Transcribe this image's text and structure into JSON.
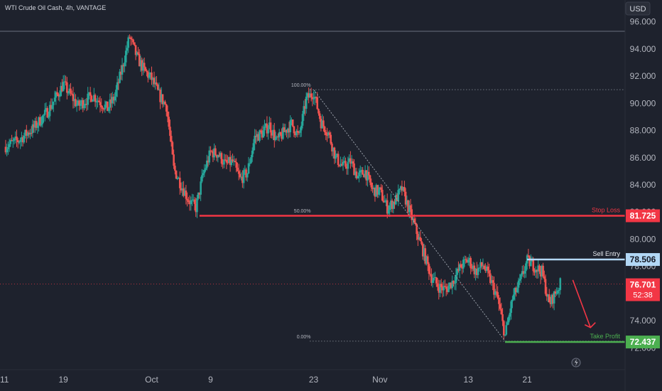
{
  "header": {
    "symbol_title": "WTI Crude Oil Cash, 4h, VANTAGE",
    "currency_button": "USD"
  },
  "price_axis": {
    "ticks": [
      "96.000",
      "94.000",
      "92.000",
      "90.000",
      "88.000",
      "86.000",
      "84.000",
      "82.000",
      "80.000",
      "78.000",
      "76.000",
      "74.000",
      "72.000"
    ]
  },
  "time_axis": {
    "ticks": [
      {
        "label": "11",
        "day": 0
      },
      {
        "label": "19",
        "day": 8
      },
      {
        "label": "Oct",
        "day": 20
      },
      {
        "label": "9",
        "day": 28
      },
      {
        "label": "23",
        "day": 42
      },
      {
        "label": "Nov",
        "day": 51
      },
      {
        "label": "13",
        "day": 63
      },
      {
        "label": "21",
        "day": 71
      }
    ]
  },
  "fib": {
    "level_100": "100.00%",
    "level_50": "50.00%",
    "level_0": "0.00%"
  },
  "annotations": {
    "stop_loss_label": "Stop Loss",
    "stop_loss_value": "81.725",
    "sell_entry_label": "Sell Entry",
    "sell_entry_value": "78.506",
    "take_profit_label": "Take Profit",
    "take_profit_value": "72.437",
    "current_price": "76.701",
    "countdown": "52:38"
  },
  "colors": {
    "background": "#1e222d",
    "up": "#26a69a",
    "down": "#ef5350",
    "stop_loss": "#f23645",
    "sell_entry": "#b2d7f5",
    "take_profit": "#4caf50",
    "current": "#f23645",
    "text": "#b2b5be"
  },
  "chart_data": {
    "type": "candlestick",
    "title": "WTI Crude Oil Cash, 4h, VANTAGE",
    "ylim": [
      70.4,
      97.6
    ],
    "xlim_days": [
      -0.6,
      84.3
    ],
    "y_unit": "USD",
    "x_unit": "days (Sep 11 = 0)",
    "anchors": [
      [
        0,
        86.8
      ],
      [
        2,
        87.3
      ],
      [
        4,
        88.2
      ],
      [
        6,
        89.5
      ],
      [
        8,
        91.4
      ],
      [
        10,
        89.8
      ],
      [
        12,
        90.6
      ],
      [
        14,
        89.6
      ],
      [
        15,
        90.5
      ],
      [
        16,
        92.6
      ],
      [
        17,
        94.9
      ],
      [
        18,
        93.4
      ],
      [
        19,
        92.4
      ],
      [
        20,
        91.8
      ],
      [
        21,
        90.6
      ],
      [
        22,
        89.8
      ],
      [
        23,
        85.2
      ],
      [
        24,
        84.0
      ],
      [
        25,
        82.9
      ],
      [
        26,
        82.3
      ],
      [
        27,
        84.8
      ],
      [
        28,
        86.4
      ],
      [
        29,
        86.3
      ],
      [
        30,
        85.5
      ],
      [
        31,
        85.7
      ],
      [
        32,
        84.4
      ],
      [
        33,
        84.9
      ],
      [
        34,
        87.5
      ],
      [
        35,
        87.8
      ],
      [
        36,
        88.4
      ],
      [
        37,
        87.2
      ],
      [
        38,
        87.9
      ],
      [
        39,
        88.5
      ],
      [
        40,
        87.5
      ],
      [
        41,
        90.3
      ],
      [
        42,
        90.8
      ],
      [
        43,
        88.6
      ],
      [
        44,
        87.8
      ],
      [
        45,
        86.0
      ],
      [
        46,
        85.3
      ],
      [
        47,
        85.7
      ],
      [
        48,
        84.6
      ],
      [
        49,
        85.0
      ],
      [
        50,
        83.6
      ],
      [
        51,
        83.5
      ],
      [
        52,
        82.3
      ],
      [
        53,
        82.8
      ],
      [
        54,
        83.7
      ],
      [
        55,
        82.1
      ],
      [
        56,
        80.5
      ],
      [
        57,
        78.9
      ],
      [
        58,
        77.2
      ],
      [
        59,
        76.5
      ],
      [
        60,
        76.3
      ],
      [
        61,
        77.0
      ],
      [
        62,
        78.0
      ],
      [
        63,
        78.5
      ],
      [
        64,
        77.6
      ],
      [
        65,
        78.1
      ],
      [
        66,
        77.0
      ],
      [
        67,
        75.6
      ],
      [
        68,
        72.9
      ],
      [
        69,
        75.6
      ],
      [
        70,
        76.8
      ],
      [
        71,
        78.4
      ],
      [
        72,
        78.0
      ],
      [
        73,
        77.6
      ],
      [
        74,
        75.2
      ],
      [
        75,
        76.2
      ],
      [
        75.5,
        76.7
      ]
    ],
    "hlines": [
      {
        "name": "Stop Loss",
        "value": 81.725
      },
      {
        "name": "Sell Entry",
        "value": 78.506
      },
      {
        "name": "Take Profit",
        "value": 72.437
      },
      {
        "name": "current price",
        "value": 76.701
      }
    ],
    "fibonacci": {
      "high": {
        "day": 42,
        "value": 91.0
      },
      "low": {
        "day": 68,
        "value": 72.5
      },
      "levels": [
        {
          "label": "100.00%",
          "value": 91.0
        },
        {
          "label": "50.00%",
          "value": 81.75
        },
        {
          "label": "0.00%",
          "value": 72.5
        }
      ]
    },
    "peak_line": 95.3,
    "forecast_arrow": {
      "from": {
        "day": 77.2,
        "value": 77.0
      },
      "to": {
        "day": 79.6,
        "value": 73.5
      }
    }
  }
}
